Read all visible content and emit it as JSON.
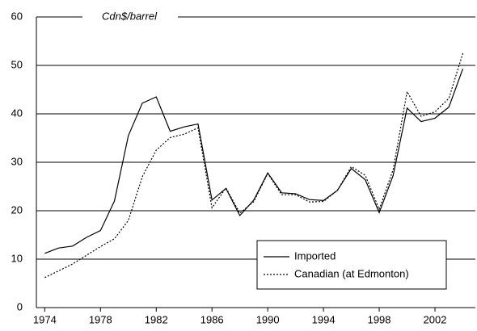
{
  "chart_data": {
    "type": "line",
    "y_label": "Cdn$/barrel",
    "x": [
      1974,
      1975,
      1976,
      1977,
      1978,
      1979,
      1980,
      1981,
      1982,
      1983,
      1984,
      1985,
      1986,
      1987,
      1988,
      1989,
      1990,
      1991,
      1992,
      1993,
      1994,
      1995,
      1996,
      1997,
      1998,
      1999,
      2000,
      2001,
      2002,
      2003,
      2004
    ],
    "series": [
      {
        "name": "Imported",
        "color": "#000000",
        "style": "solid",
        "values": [
          11.2,
          12.3,
          12.7,
          14.5,
          15.9,
          22,
          35.5,
          42.2,
          43.5,
          36.4,
          37.3,
          37.9,
          22.2,
          24.6,
          19,
          22.2,
          27.8,
          23.7,
          23.5,
          22.3,
          22.1,
          24.2,
          28.7,
          26.4,
          19.6,
          27.3,
          41.2,
          38.4,
          39.1,
          41.4,
          49.3
        ]
      },
      {
        "name": "Canadian (at Edmonton)",
        "color": "#000000",
        "style": "dotted",
        "values": [
          6.2,
          7.6,
          9,
          10.8,
          12.6,
          14.2,
          18,
          27,
          32.5,
          35.1,
          35.8,
          37.1,
          20.6,
          24.7,
          19.5,
          21.9,
          27.7,
          23.3,
          23.3,
          21.8,
          21.9,
          24.2,
          29.1,
          27.3,
          20.3,
          28.5,
          44.6,
          39.5,
          40.4,
          43.2,
          52.5
        ]
      }
    ],
    "xlim": [
      1973.4,
      2004.9
    ],
    "xticks": [
      1974,
      1978,
      1982,
      1986,
      1990,
      1994,
      1998,
      2002
    ],
    "ylim": [
      0,
      60
    ],
    "yticks": [
      0,
      10,
      20,
      30,
      40,
      50,
      60
    ],
    "grid": true,
    "legend_position": "lower right"
  }
}
